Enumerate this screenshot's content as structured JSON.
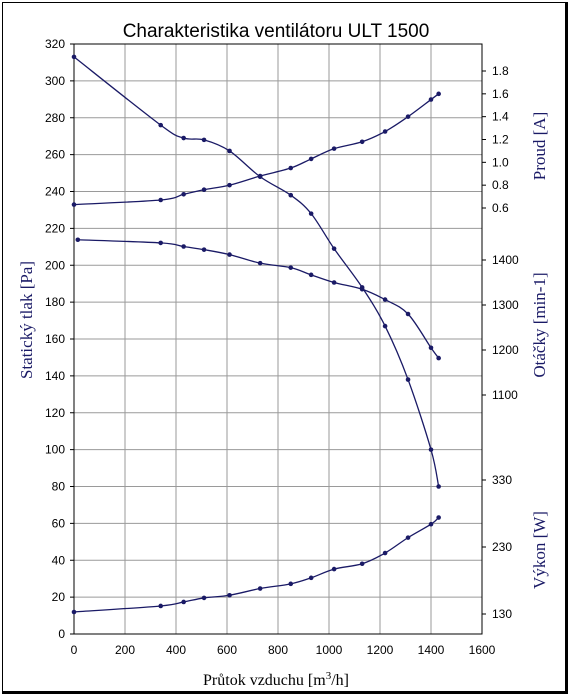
{
  "chart_data": {
    "type": "line",
    "title": "Charakteristika ventilátoru ULT 1500",
    "xlabel_prefix": "Průtok vzduchu [m",
    "xlabel_sup": "3",
    "xlabel_suffix": "/h]",
    "x_ticks": [
      "0",
      "200",
      "400",
      "600",
      "800",
      "1000",
      "1200",
      "1400",
      "1600"
    ],
    "xlim": [
      0,
      1600
    ],
    "axes": {
      "left": {
        "label": "Statický tlak [Pa]",
        "ylim": [
          0,
          320
        ],
        "ticks": [
          "0",
          "20",
          "40",
          "60",
          "80",
          "100",
          "120",
          "140",
          "160",
          "180",
          "200",
          "220",
          "240",
          "260",
          "280",
          "300",
          "320"
        ]
      },
      "right_current": {
        "label": "Proud [A]",
        "ticks": [
          "0.6",
          "0.8",
          "1.0",
          "1.2",
          "1.4",
          "1.6",
          "1.8"
        ]
      },
      "right_rpm": {
        "label": "Otáčky [min-1]",
        "ticks": [
          "1100",
          "1200",
          "1300",
          "1400"
        ]
      },
      "right_power": {
        "label": "Výkon [W]",
        "ticks": [
          "130",
          "230",
          "330"
        ]
      }
    },
    "series": [
      {
        "axis": "left",
        "x": [
          0,
          340,
          430,
          510,
          610,
          730,
          850,
          930,
          1020,
          1130,
          1220,
          1310,
          1400,
          1430
        ],
        "y": [
          313,
          276,
          269,
          268,
          262,
          248,
          238,
          228,
          209,
          188,
          167,
          138,
          100,
          80
        ]
      },
      {
        "axis": "right_current",
        "x": [
          0,
          340,
          430,
          510,
          610,
          730,
          850,
          930,
          1020,
          1130,
          1220,
          1310,
          1400,
          1430
        ],
        "y": [
          0.63,
          0.67,
          0.72,
          0.76,
          0.8,
          0.88,
          0.95,
          1.03,
          1.12,
          1.18,
          1.27,
          1.4,
          1.55,
          1.6
        ]
      },
      {
        "axis": "right_rpm",
        "x": [
          15,
          340,
          430,
          510,
          610,
          730,
          850,
          930,
          1020,
          1130,
          1220,
          1310,
          1400,
          1430
        ],
        "y": [
          1445,
          1438,
          1430,
          1423,
          1412,
          1393,
          1383,
          1367,
          1350,
          1335,
          1312,
          1280,
          1205,
          1182
        ]
      },
      {
        "axis": "right_power",
        "x": [
          0,
          340,
          430,
          510,
          610,
          730,
          850,
          930,
          1020,
          1130,
          1220,
          1310,
          1400,
          1430
        ],
        "y": [
          133,
          142,
          148,
          154,
          158,
          168,
          175,
          184,
          197,
          205,
          221,
          244,
          264,
          274
        ]
      }
    ]
  }
}
